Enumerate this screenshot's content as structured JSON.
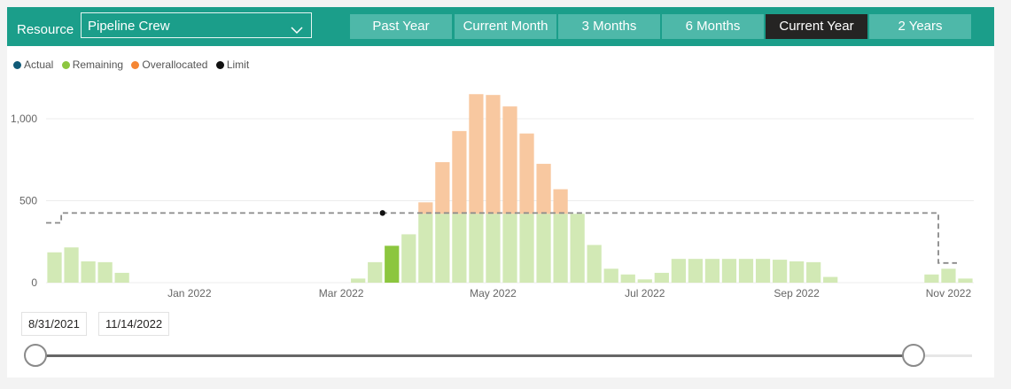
{
  "toolbar": {
    "resource_label": "Resource",
    "resource_value": "Pipeline Crew",
    "periods": [
      {
        "label": "Past Year",
        "active": false
      },
      {
        "label": "Current Month",
        "active": false
      },
      {
        "label": "3 Months",
        "active": false
      },
      {
        "label": "6 Months",
        "active": false
      },
      {
        "label": "Current Year",
        "active": true
      },
      {
        "label": "2 Years",
        "active": false
      }
    ]
  },
  "legend": [
    {
      "label": "Actual",
      "color": "#115b78"
    },
    {
      "label": "Remaining",
      "color": "#8cc63f"
    },
    {
      "label": "Overallocated",
      "color": "#f58634"
    },
    {
      "label": "Limit",
      "color": "#111111"
    }
  ],
  "chart_data": {
    "type": "bar",
    "ylim": [
      0,
      1150
    ],
    "yticks": [
      0,
      500,
      1000
    ],
    "ytick_labels": [
      "0",
      "500",
      "1,000"
    ],
    "xtick_labels": [
      {
        "label": "Jan 2022",
        "index": 8
      },
      {
        "label": "Mar 2022",
        "index": 17
      },
      {
        "label": "May 2022",
        "index": 26
      },
      {
        "label": "Jul 2022",
        "index": 35
      },
      {
        "label": "Sep 2022",
        "index": 44
      },
      {
        "label": "Nov 2022",
        "index": 53
      }
    ],
    "limit_steps": [
      {
        "start": 0,
        "end": 0.9,
        "value": 365
      },
      {
        "start": 0.9,
        "end": 52.9,
        "value": 425
      },
      {
        "start": 52.9,
        "end": 54,
        "value": 120
      }
    ],
    "limit_marker_index": 20,
    "series": [
      {
        "name": "Remaining",
        "color": "#d2e9b5",
        "values": [
          185,
          215,
          130,
          125,
          60,
          0,
          0,
          0,
          0,
          0,
          0,
          0,
          0,
          0,
          0,
          0,
          0,
          0,
          25,
          125,
          225,
          295,
          420,
          420,
          420,
          420,
          420,
          420,
          420,
          420,
          420,
          420,
          230,
          85,
          50,
          20,
          60,
          145,
          145,
          145,
          145,
          145,
          145,
          140,
          130,
          125,
          35,
          0,
          0,
          0,
          0,
          0,
          50,
          85,
          25
        ]
      },
      {
        "name": "Overallocated",
        "color": "#f8c8a0",
        "values": [
          0,
          0,
          0,
          0,
          0,
          0,
          0,
          0,
          0,
          0,
          0,
          0,
          0,
          0,
          0,
          0,
          0,
          0,
          0,
          0,
          0,
          0,
          70,
          315,
          505,
          730,
          725,
          655,
          490,
          305,
          150,
          0,
          0,
          0,
          0,
          0,
          0,
          0,
          0,
          0,
          0,
          0,
          0,
          0,
          0,
          0,
          0,
          0,
          0,
          0,
          0,
          0,
          0,
          0,
          0
        ]
      }
    ],
    "highlight_index": 20,
    "highlight_color": "#8cc63f"
  },
  "date_range": {
    "start": "8/31/2021",
    "end": "11/14/2022"
  }
}
